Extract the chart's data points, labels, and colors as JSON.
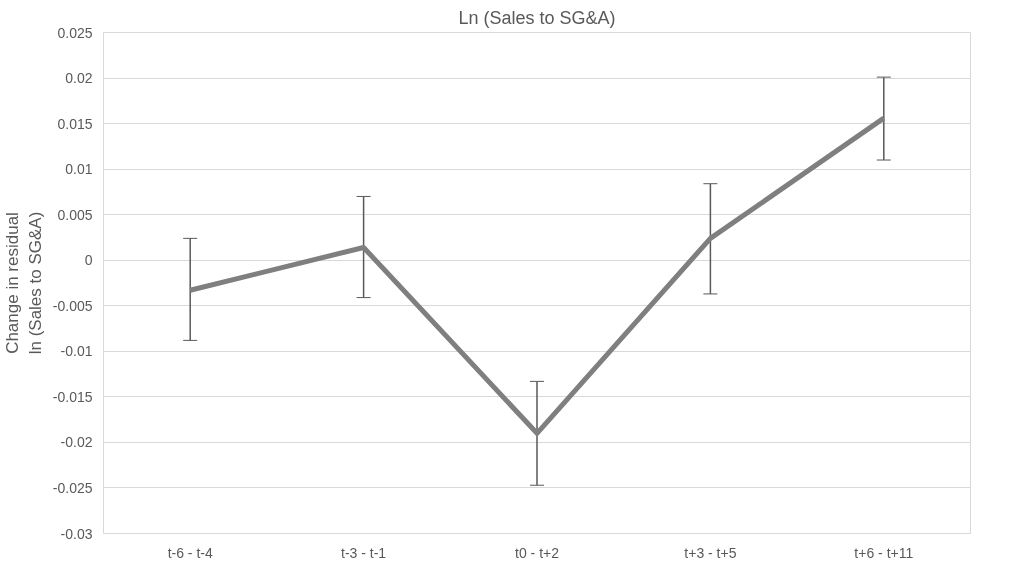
{
  "chart_data": {
    "type": "line",
    "title": "Ln (Sales to SG&A)",
    "ylabel": "Change in residual\nln (Sales to SG&A)",
    "categories": [
      "t-6 - t-4",
      "t-3 - t-1",
      "t0 - t+2",
      "t+3 - t+5",
      "t+6 - t+11"
    ],
    "series": [
      {
        "color": "#7f7f7f",
        "values": [
          -0.0033,
          0.0014,
          -0.019,
          0.0024,
          0.0156
        ],
        "errors": [
          [
            -0.0088,
            0.0024
          ],
          [
            -0.0041,
            0.007
          ],
          [
            -0.0247,
            -0.0133
          ],
          [
            -0.0037,
            0.0084
          ],
          [
            0.011,
            0.0201
          ]
        ]
      }
    ],
    "ylim": [
      -0.03,
      0.025
    ],
    "yticks": [
      -0.03,
      -0.025,
      -0.02,
      -0.015,
      -0.01,
      -0.005,
      0,
      0.005,
      0.01,
      0.015,
      0.02,
      0.025
    ],
    "grid": "y",
    "marker": "none",
    "line_style": "solid"
  }
}
